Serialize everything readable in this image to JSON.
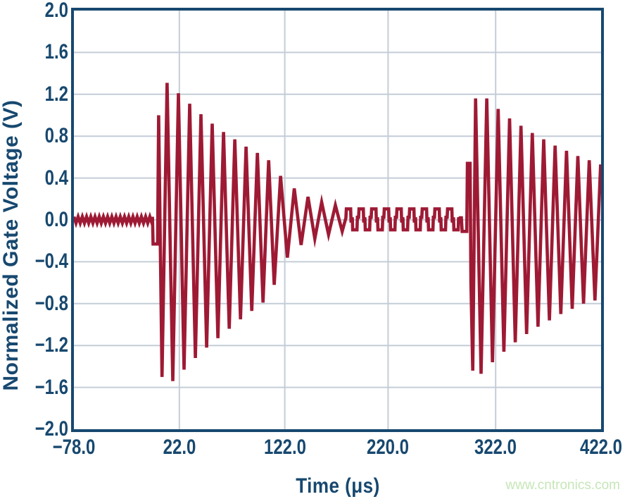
{
  "watermark": {
    "text": "www.cntronics.com"
  },
  "colors": {
    "trace": "#9e1a34",
    "axis_and_text": "#17486f",
    "grid": "#c4cdd7",
    "background": "#ffffff",
    "watermark": "#c6e6b7"
  },
  "chart_data": {
    "type": "line",
    "title": "",
    "xlabel": "Time (μs)",
    "ylabel": "Normalized Gate Voltage (V)",
    "xlim": [
      -78,
      422
    ],
    "ylim": [
      -2,
      2
    ],
    "grid": true,
    "legend": "none",
    "x_ticks": [
      {
        "label": "−78.0",
        "value": -78
      },
      {
        "label": "22.0",
        "value": 22
      },
      {
        "label": "122.0",
        "value": 122
      },
      {
        "label": "220.0",
        "value": 220
      },
      {
        "label": "322.0",
        "value": 322
      },
      {
        "label": "422.0",
        "value": 422
      }
    ],
    "y_ticks": [
      {
        "label": "2.0",
        "value": 2.0
      },
      {
        "label": "1.6",
        "value": 1.6
      },
      {
        "label": "1.2",
        "value": 1.2
      },
      {
        "label": "0.8",
        "value": 0.8
      },
      {
        "label": "0.4",
        "value": 0.4
      },
      {
        "label": "0.0",
        "value": 0.0
      },
      {
        "label": "−0.4",
        "value": -0.4
      },
      {
        "label": "−0.8",
        "value": -0.8
      },
      {
        "label": "−1.2",
        "value": -1.2
      },
      {
        "label": "−1.6",
        "value": -1.6
      },
      {
        "label": "−2.0",
        "value": -2.0
      }
    ],
    "series": [
      {
        "name": "normalized-gate-voltage",
        "stroke_width": 4.6,
        "segments": [
          {
            "kind": "noise",
            "t0": -78,
            "t1": -3.5,
            "level": 0,
            "amp": 0.03,
            "step": 2
          },
          {
            "kind": "poly",
            "points": [
              [
                -3.5,
                0.03
              ],
              [
                -2.9,
                -0.23
              ],
              [
                1.4,
                -0.23
              ],
              [
                2.4,
                1.0
              ],
              [
                5.6,
                -1.5
              ],
              [
                10.4,
                1.31
              ],
              [
                15.8,
                -1.54
              ],
              [
                21.1,
                1.21
              ],
              [
                26.5,
                -1.43
              ],
              [
                31.8,
                1.11
              ],
              [
                37.2,
                -1.32
              ],
              [
                42.5,
                1.01
              ],
              [
                47.9,
                -1.22
              ],
              [
                53.2,
                0.92
              ],
              [
                58.6,
                -1.13
              ],
              [
                63.9,
                0.84
              ],
              [
                69.3,
                -1.04
              ],
              [
                74.6,
                0.77
              ],
              [
                80,
                -0.95
              ],
              [
                85.3,
                0.7
              ],
              [
                90.7,
                -0.87
              ],
              [
                96,
                0.64
              ],
              [
                101.4,
                -0.79
              ],
              [
                106.7,
                0.57
              ],
              [
                112,
                -0.62
              ],
              [
                118,
                0.42
              ],
              [
                124.5,
                -0.36
              ],
              [
                131,
                0.3
              ],
              [
                137.5,
                -0.24
              ],
              [
                144,
                0.22
              ],
              [
                150.5,
                -0.18
              ],
              [
                157,
                0.17
              ],
              [
                163.5,
                -0.14
              ],
              [
                170,
                0.14
              ],
              [
                176.5,
                -0.11
              ],
              [
                180,
                0.02
              ]
            ]
          },
          {
            "kind": "square",
            "t0": 180,
            "t1": 289,
            "period": 12,
            "width": 4.5,
            "up": 0.105,
            "down": -0.095
          },
          {
            "kind": "poly",
            "points": [
              [
                287,
                0.02
              ],
              [
                289.5,
                0.02
              ],
              [
                290.2,
                -0.11
              ],
              [
                294.6,
                -0.11
              ],
              [
                295.2,
                0.54
              ],
              [
                297.8,
                0.54
              ],
              [
                298.6,
                -0.6
              ],
              [
                300.3,
                -1.44
              ],
              [
                303,
                1.16
              ],
              [
                308.2,
                -1.47
              ],
              [
                313.6,
                1.16
              ],
              [
                319,
                -1.36
              ],
              [
                324.4,
                1.06
              ],
              [
                329.8,
                -1.26
              ],
              [
                335.2,
                0.97
              ],
              [
                340.6,
                -1.17
              ],
              [
                346,
                0.9
              ],
              [
                351.4,
                -1.09
              ],
              [
                356.8,
                0.83
              ],
              [
                362.2,
                -1.02
              ],
              [
                367.6,
                0.77
              ],
              [
                373,
                -0.96
              ],
              [
                378.4,
                0.71
              ],
              [
                383.8,
                -0.9
              ],
              [
                389.2,
                0.66
              ],
              [
                394.6,
                -0.85
              ],
              [
                400,
                0.61
              ],
              [
                405.4,
                -0.8
              ],
              [
                410.8,
                0.57
              ],
              [
                416.2,
                -0.77
              ],
              [
                421.6,
                0.53
              ],
              [
                422,
                0.35
              ]
            ]
          }
        ]
      }
    ]
  }
}
